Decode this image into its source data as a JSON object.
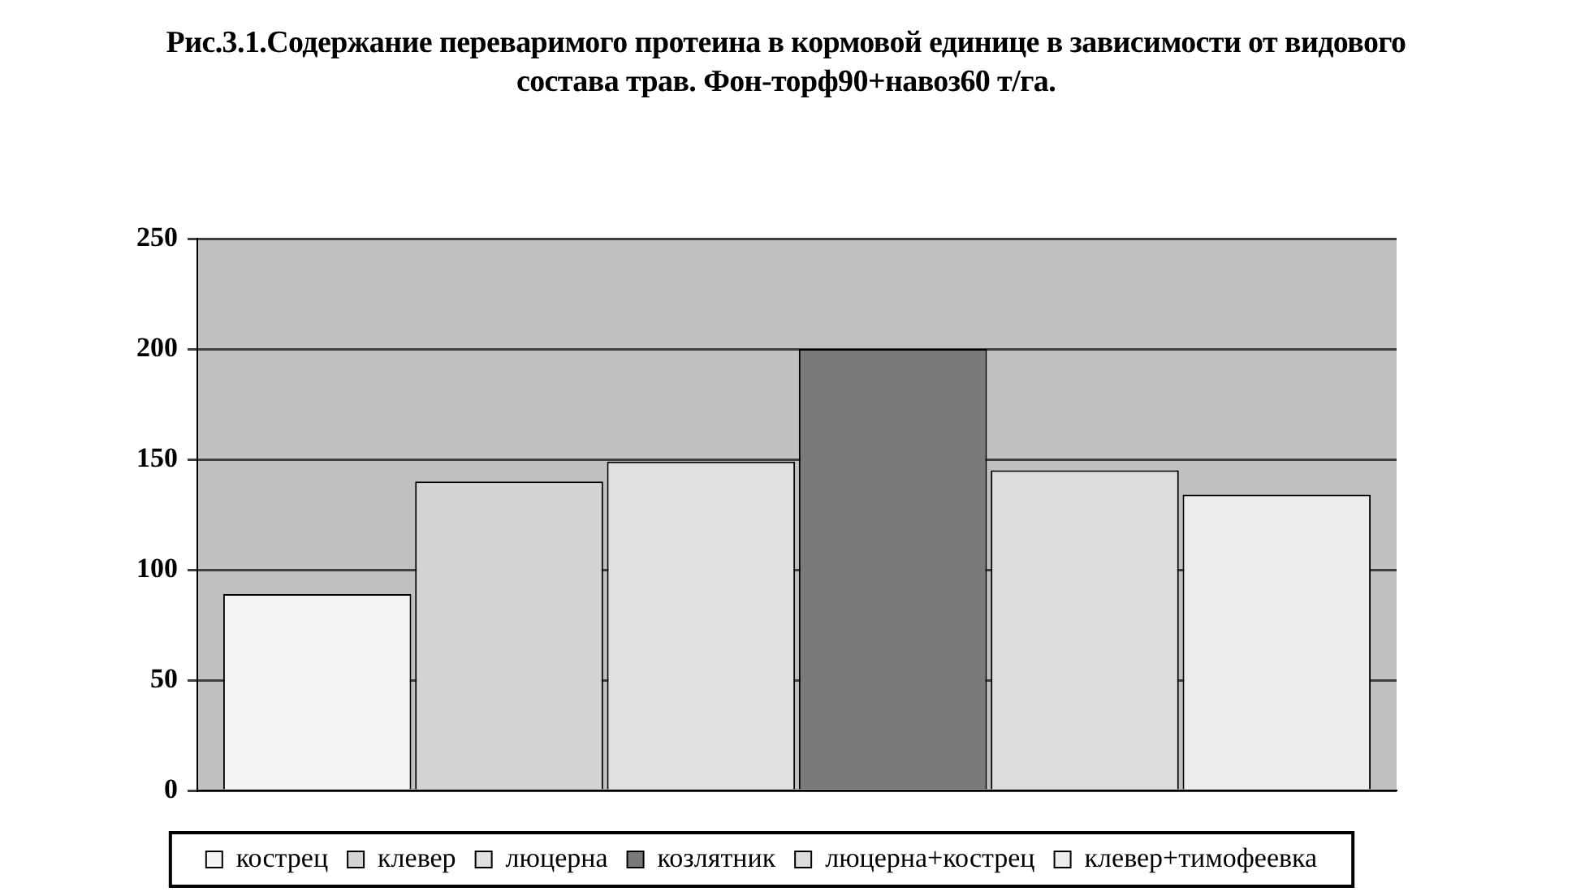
{
  "chart_data": {
    "type": "bar",
    "title": "Рис.3.1.Содержание переваримого протеина в кормовой единице в зависимости от видового состава трав. Фон-торф90+навоз60 т/га.",
    "categories": [
      null
    ],
    "series": [
      {
        "name": "кострец",
        "color": "#f4f4f4",
        "values": [
          89
        ]
      },
      {
        "name": "клевер",
        "color": "#d4d4d4",
        "values": [
          140
        ]
      },
      {
        "name": "люцерна",
        "color": "#e0e0e0",
        "values": [
          149
        ]
      },
      {
        "name": "козлятник",
        "color": "#7a7a7a",
        "values": [
          200
        ]
      },
      {
        "name": "люцерна+кострец",
        "color": "#dcdcdc",
        "values": [
          145
        ]
      },
      {
        "name": "клевер+тимофеевка",
        "color": "#ececec",
        "values": [
          134
        ]
      }
    ],
    "ylim": [
      0,
      250
    ],
    "yticks": [
      0,
      50,
      100,
      150,
      200,
      250
    ],
    "grid": "y",
    "legend": "bottom"
  }
}
